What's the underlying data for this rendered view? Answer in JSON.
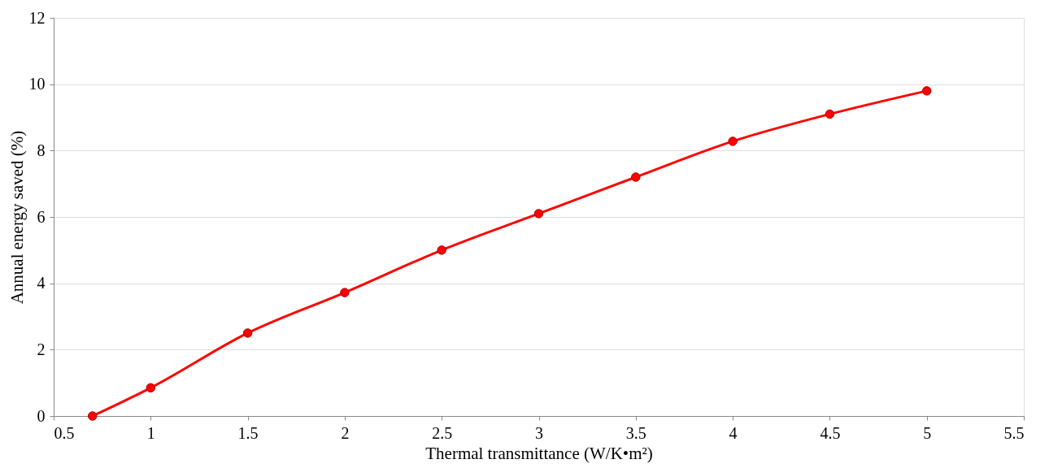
{
  "chart_data": {
    "type": "line",
    "xlabel": "Thermal transmittance (W/K•m²)",
    "ylabel": "Annual energy saved (%)",
    "x": [
      0.7,
      1,
      1.5,
      2,
      2.5,
      3,
      3.5,
      4,
      4.5,
      5
    ],
    "series": [
      {
        "color": "#ff0000",
        "values": [
          0,
          0.85,
          2.5,
          3.72,
          5.0,
          6.1,
          7.2,
          8.28,
          9.1,
          9.8
        ]
      }
    ],
    "xlim": [
      0.5,
      5.5
    ],
    "xticks": [
      0.5,
      1,
      1.5,
      2,
      2.5,
      3,
      3.5,
      4,
      4.5,
      5,
      5.5
    ],
    "ylim": [
      0,
      12
    ],
    "yticks": [
      0,
      2,
      4,
      6,
      8,
      10,
      12
    ],
    "grid": "y",
    "marker": "circle",
    "line_style": "solid"
  }
}
